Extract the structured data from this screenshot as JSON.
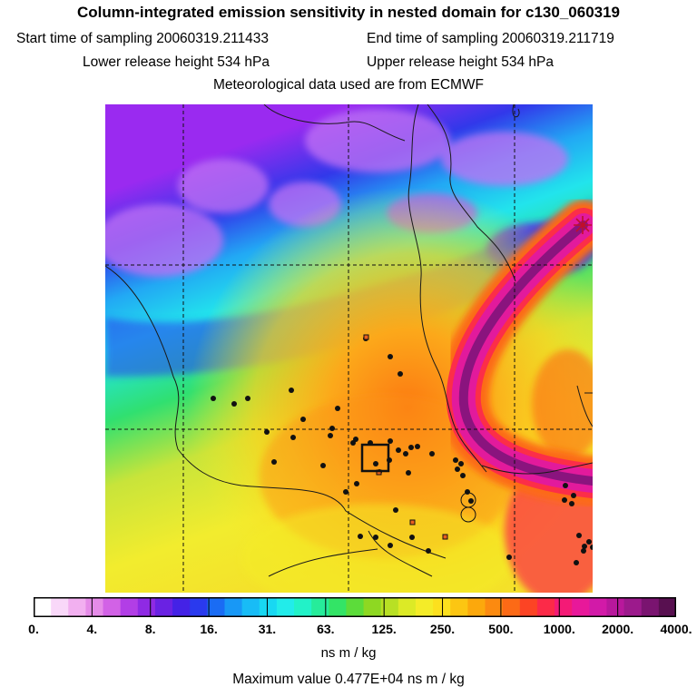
{
  "header": {
    "title": "Column-integrated emission sensitivity in nested domain for c130_060319",
    "start_time": "Start time of sampling 20060319.211433",
    "end_time": "End time of sampling 20060319.211719",
    "lower_release": "Lower release height  534 hPa",
    "upper_release": "Upper release height  534 hPa",
    "met_data": "Meteorological data used are from ECMWF"
  },
  "colorbar": {
    "colors": [
      "#ffffff",
      "#f9d8f9",
      "#f2b0f0",
      "#e58be8",
      "#d262e6",
      "#b23ee6",
      "#8f2ae4",
      "#6a22e3",
      "#4422e6",
      "#2a3aee",
      "#1a6cf4",
      "#1898f6",
      "#18bcf6",
      "#18d8f2",
      "#22ecea",
      "#22f2c8",
      "#26ec9a",
      "#33e466",
      "#5cdc3a",
      "#8ed822",
      "#b8e024",
      "#dcea26",
      "#f4ec28",
      "#fce01e",
      "#fcc612",
      "#fca80c",
      "#fc8a10",
      "#fc6a16",
      "#fc4424",
      "#fc2a48",
      "#f41a76",
      "#e8189a",
      "#d21aa8",
      "#b8189c",
      "#9c1a8c",
      "#7a1470",
      "#581050"
    ],
    "tick_labels": [
      "0.",
      "4.",
      "8.",
      "16.",
      "31.",
      "63.",
      "125.",
      "250.",
      "500.",
      "1000.",
      "2000.",
      "4000."
    ],
    "units": "ns m / kg"
  },
  "footer": {
    "max_value": "Maximum value  0.477E+04 ns m / kg"
  },
  "map": {
    "colors": {
      "purple": "#9a2af0",
      "light_purple": "#c272f4",
      "blue": "#3238ea",
      "cyan": "#22e4ec",
      "green": "#30e070",
      "yellow_green": "#c8e43a",
      "yellow": "#f2ec2e",
      "orange": "#fcaa1a",
      "red": "#fc2e48",
      "magenta": "#e21a9c",
      "dark_magenta": "#8a147e"
    },
    "release_marker": "star-icon"
  }
}
